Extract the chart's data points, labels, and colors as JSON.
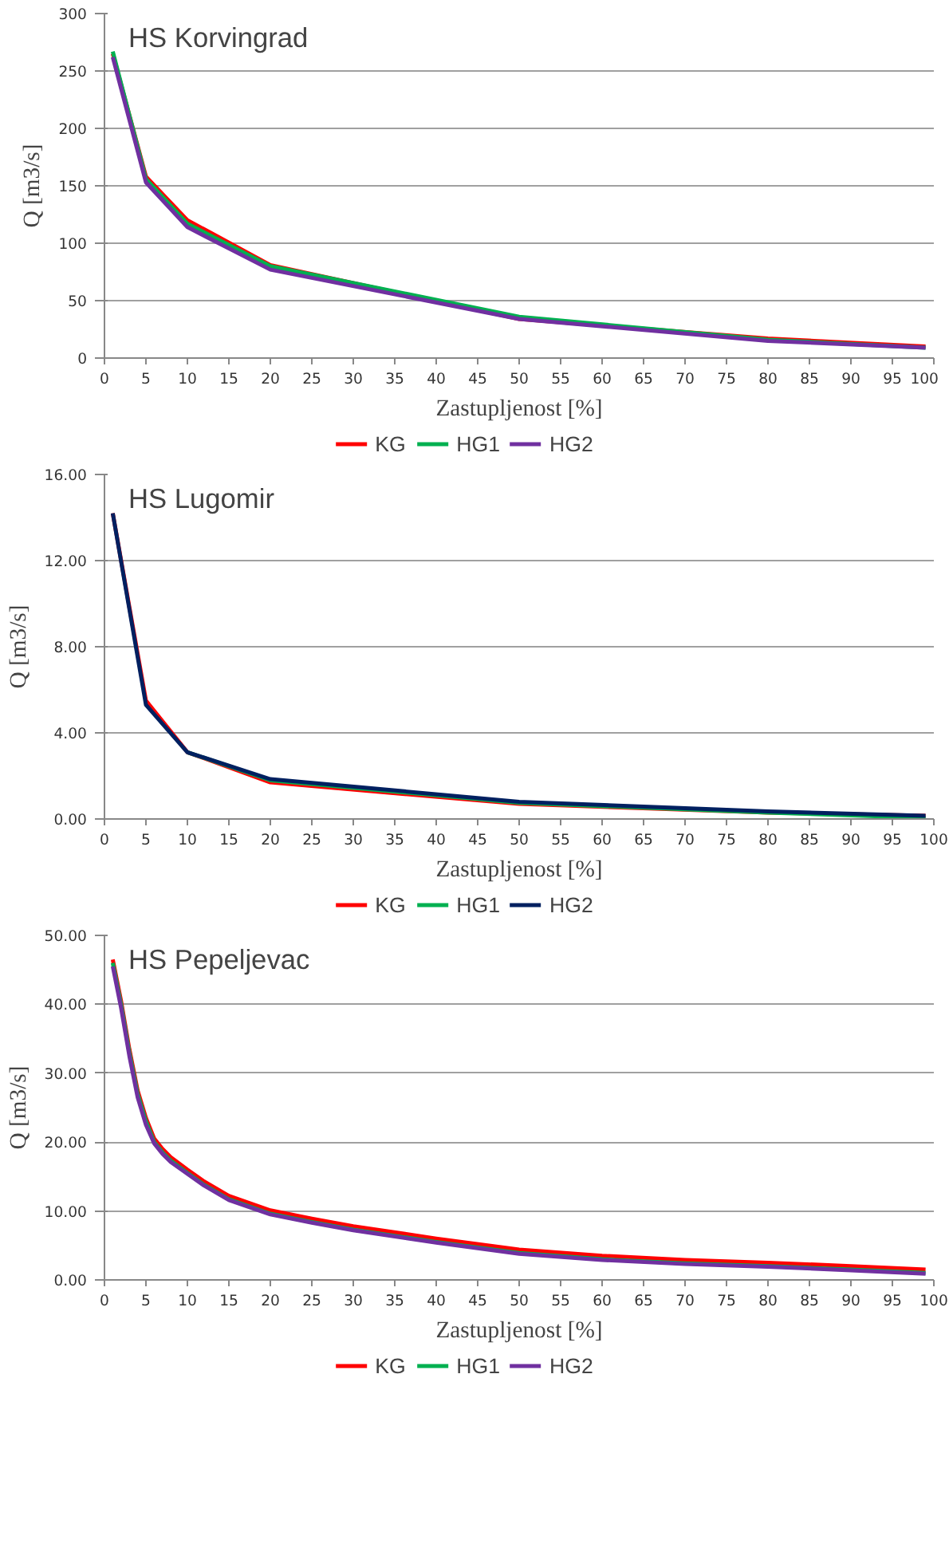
{
  "chart_data": [
    {
      "type": "line",
      "title": "HS Korvingrad",
      "xlabel": "Zastupljenost [%]",
      "ylabel": "Q [m3/s]",
      "x": [
        1,
        5,
        10,
        20,
        50,
        80,
        99
      ],
      "xlim": [
        0,
        100
      ],
      "xticks": [
        0,
        5,
        10,
        15,
        20,
        25,
        30,
        35,
        40,
        45,
        50,
        55,
        60,
        65,
        70,
        75,
        80,
        85,
        90,
        95,
        100
      ],
      "ylim": [
        0,
        300
      ],
      "yticks": [
        0,
        50,
        100,
        150,
        200,
        250,
        300
      ],
      "grid": "y",
      "legend": "bottom",
      "series": [
        {
          "name": "KG",
          "color": "#ff0000",
          "values": [
            265,
            158,
            120,
            81,
            34,
            17,
            10
          ]
        },
        {
          "name": "HG1",
          "color": "#00b050",
          "values": [
            267,
            156,
            117,
            80,
            36,
            16,
            9
          ]
        },
        {
          "name": "HG2",
          "color": "#7030a0",
          "values": [
            262,
            153,
            114,
            77,
            34,
            15,
            9
          ]
        }
      ]
    },
    {
      "type": "line",
      "title": "HS Lugomir",
      "xlabel": "Zastupljenost [%]",
      "ylabel": "Q [m3/s]",
      "x": [
        1,
        5,
        10,
        20,
        50,
        80,
        99
      ],
      "xlim": [
        0,
        100
      ],
      "xticks": [
        0,
        5,
        10,
        15,
        20,
        25,
        30,
        35,
        40,
        45,
        50,
        55,
        60,
        65,
        70,
        75,
        80,
        85,
        90,
        95,
        100
      ],
      "ylim": [
        0,
        16
      ],
      "yticks": [
        {
          "value": 0,
          "label": "0.00"
        },
        {
          "value": 4,
          "label": "4.00"
        },
        {
          "value": 8,
          "label": "8.00"
        },
        {
          "value": 12,
          "label": "12.00"
        },
        {
          "value": 16,
          "label": "16.00"
        }
      ],
      "grid": "y",
      "legend": "bottom",
      "series": [
        {
          "name": "KG",
          "color": "#ff0000",
          "values": [
            14.2,
            5.5,
            3.1,
            1.7,
            0.7,
            0.3,
            0.15
          ]
        },
        {
          "name": "HG1",
          "color": "#00b050",
          "values": [
            null,
            null,
            3.1,
            1.8,
            0.75,
            0.3,
            0.05
          ]
        },
        {
          "name": "HG2",
          "color": "#002060",
          "values": [
            14.2,
            5.3,
            3.1,
            1.85,
            0.8,
            0.35,
            0.15
          ]
        }
      ]
    },
    {
      "type": "line",
      "title": "HS Pepeljevac",
      "xlabel": "Zastupljenost [%]",
      "ylabel": "Q [m3/s]",
      "x": [
        1,
        2,
        3,
        4,
        5,
        6,
        7,
        8,
        10,
        12,
        15,
        20,
        25,
        30,
        40,
        50,
        60,
        70,
        80,
        90,
        99
      ],
      "xlim": [
        0,
        100
      ],
      "xticks": [
        0,
        5,
        10,
        15,
        20,
        25,
        30,
        35,
        40,
        45,
        50,
        55,
        60,
        65,
        70,
        75,
        80,
        85,
        90,
        95,
        100
      ],
      "ylim": [
        0,
        50
      ],
      "yticks": [
        {
          "value": 0,
          "label": "0.00"
        },
        {
          "value": 10,
          "label": "10.00"
        },
        {
          "value": 20,
          "label": "20.00"
        },
        {
          "value": 30,
          "label": "30.00"
        },
        {
          "value": 40,
          "label": "40.00"
        },
        {
          "value": 50,
          "label": "50.00"
        }
      ],
      "grid": "y",
      "legend": "bottom",
      "series": [
        {
          "name": "KG",
          "color": "#ff0000",
          "values": [
            46.5,
            40.5,
            33.5,
            27.5,
            23.5,
            20.5,
            19,
            17.8,
            16,
            14.3,
            12.2,
            10.1,
            8.9,
            7.8,
            6,
            4.4,
            3.5,
            2.9,
            2.5,
            2,
            1.5
          ]
        },
        {
          "name": "HG1",
          "color": "#00b050",
          "values": [
            46,
            40,
            33,
            27,
            23,
            20,
            18.5,
            17.3,
            15.5,
            13.8,
            11.7,
            9.6,
            8.4,
            7.3,
            5.5,
            3.9,
            3.0,
            2.4,
            2.0,
            1.5,
            1.0
          ]
        },
        {
          "name": "HG2",
          "color": "#7030a0",
          "values": [
            45.5,
            39.5,
            32.5,
            26.5,
            22.5,
            19.8,
            18.3,
            17.1,
            15.4,
            13.7,
            11.6,
            9.5,
            8.3,
            7.2,
            5.4,
            3.8,
            2.9,
            2.3,
            1.9,
            1.4,
            0.9
          ]
        }
      ]
    }
  ]
}
